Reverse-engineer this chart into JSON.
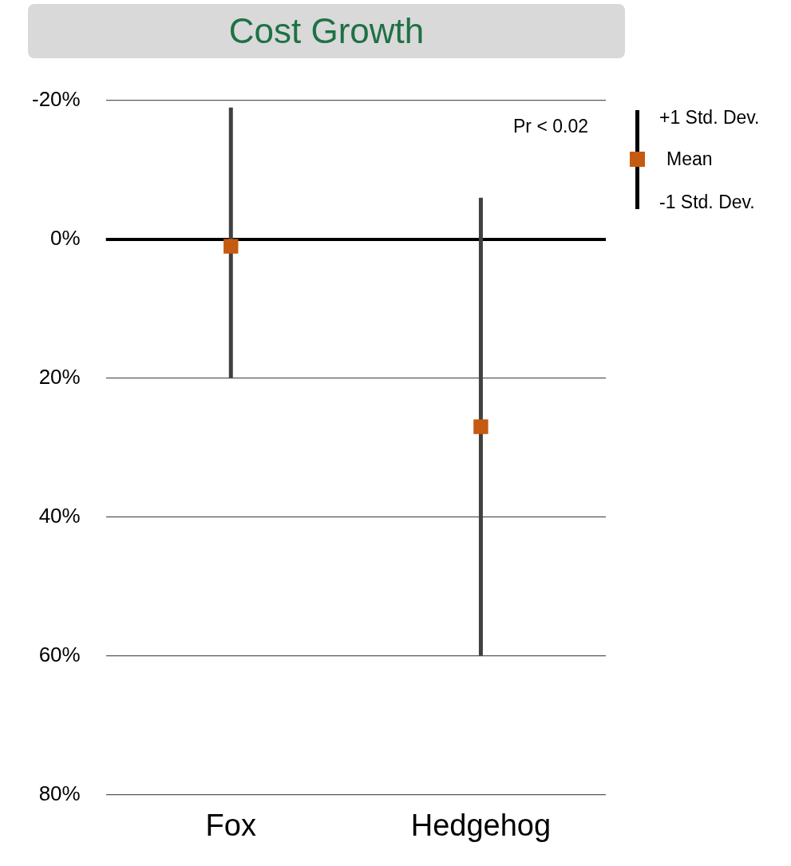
{
  "chart_data": {
    "type": "scatter",
    "title": "Cost Growth",
    "categories": [
      "Fox",
      "Hedgehog"
    ],
    "series": [
      {
        "name": "Mean",
        "color": "#c55a11",
        "values": [
          1,
          27
        ],
        "errors": [
          [
            -19,
            20
          ],
          [
            -6,
            60
          ]
        ]
      }
    ],
    "ylim": [
      80,
      -20
    ],
    "yticks": [
      {
        "value": -20,
        "label": "-20%"
      },
      {
        "value": 0,
        "label": "0%"
      },
      {
        "value": 20,
        "label": "20%"
      },
      {
        "value": 40,
        "label": "40%"
      },
      {
        "value": 60,
        "label": "60%"
      },
      {
        "value": 80,
        "label": "80%"
      }
    ],
    "grid": "y",
    "legend": "right",
    "marker": "square",
    "ref_lines": [
      {
        "axis": "y",
        "value": 0,
        "color": "#000000"
      }
    ],
    "annotations": [
      "Pr < 0.02",
      "+1 Std. Dev.",
      "-1 Std. Dev."
    ]
  }
}
